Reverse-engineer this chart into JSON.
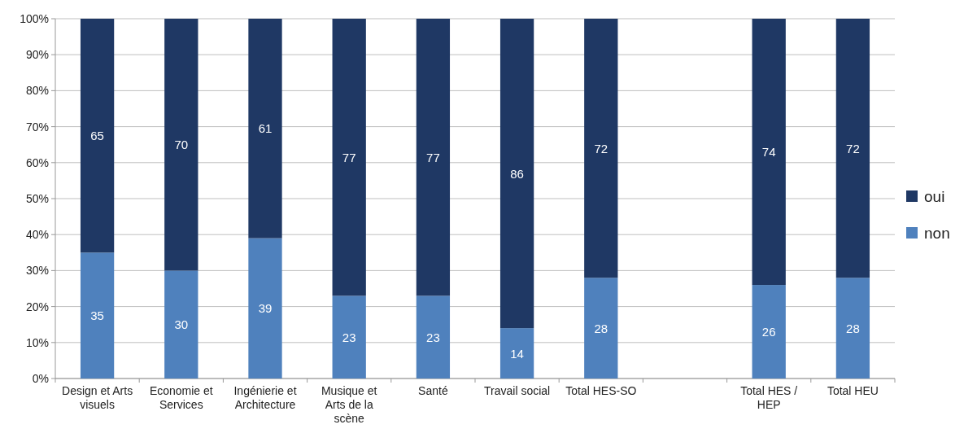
{
  "chart_data": {
    "type": "bar",
    "stacked": true,
    "categories": [
      "Design et Arts visuels",
      "Economie et Services",
      "Ingénierie et Architecture",
      "Musique et Arts de la scène",
      "Santé",
      "Travail social",
      "Total HES-SO",
      null,
      "Total HES / HEP",
      "Total HEU"
    ],
    "series": [
      {
        "name": "non",
        "color": "#4f81bd",
        "values": [
          35,
          30,
          39,
          23,
          23,
          14,
          28,
          null,
          26,
          28
        ]
      },
      {
        "name": "oui",
        "color": "#1f3864",
        "values": [
          65,
          70,
          61,
          77,
          77,
          86,
          72,
          null,
          74,
          72
        ]
      }
    ],
    "ylim": [
      0,
      100
    ],
    "yticks": [
      {
        "value": 0,
        "label": "0%"
      },
      {
        "value": 10,
        "label": "10%"
      },
      {
        "value": 20,
        "label": "20%"
      },
      {
        "value": 30,
        "label": "30%"
      },
      {
        "value": 40,
        "label": "40%"
      },
      {
        "value": 50,
        "label": "50%"
      },
      {
        "value": 60,
        "label": "60%"
      },
      {
        "value": 70,
        "label": "70%"
      },
      {
        "value": 80,
        "label": "80%"
      },
      {
        "value": 90,
        "label": "90%"
      },
      {
        "value": 100,
        "label": "100%"
      }
    ],
    "grid": "y",
    "legend": "right",
    "data_labels": true
  }
}
